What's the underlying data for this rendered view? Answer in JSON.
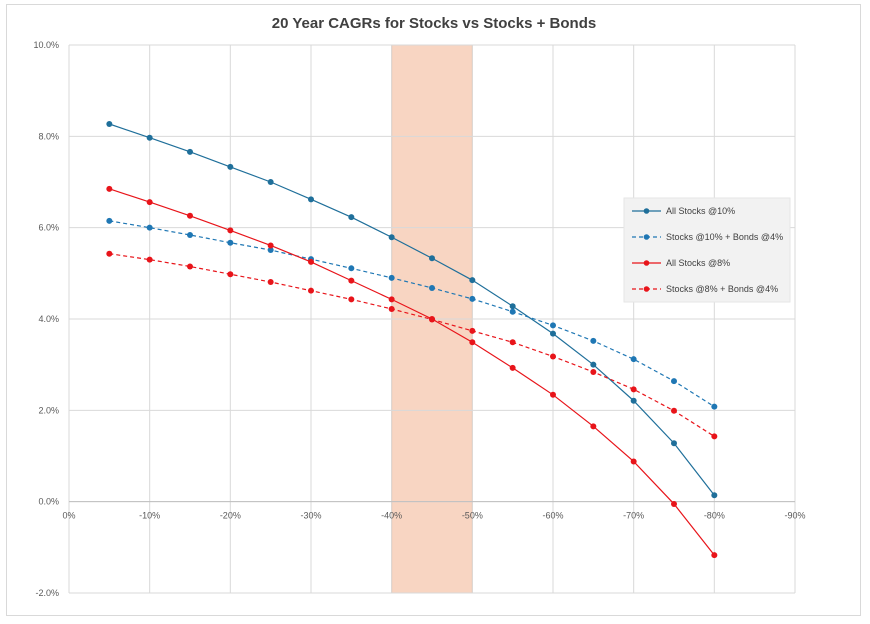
{
  "chart_data": {
    "type": "line",
    "title": "20 Year CAGRs for Stocks vs Stocks + Bonds",
    "xlabel": "",
    "ylabel": "",
    "xlim": [
      0,
      -90
    ],
    "ylim": [
      -2.0,
      10.0
    ],
    "x_ticks": [
      "0%",
      "-10%",
      "-20%",
      "-30%",
      "-40%",
      "-50%",
      "-60%",
      "-70%",
      "-80%",
      "-90%"
    ],
    "y_ticks": [
      "-2.0%",
      "0.0%",
      "2.0%",
      "4.0%",
      "6.0%",
      "8.0%",
      "10.0%"
    ],
    "grid": true,
    "legend_position": "right",
    "highlight_band": {
      "x_from": -40,
      "x_to": -50,
      "color": "#f8d5c2"
    },
    "x": [
      -5,
      -10,
      -15,
      -20,
      -25,
      -30,
      -35,
      -40,
      -45,
      -50,
      -55,
      -60,
      -65,
      -70,
      -75,
      -80
    ],
    "series": [
      {
        "name": "All Stocks @10%",
        "color": "#1f6f9a",
        "dashed": false,
        "values": [
          8.27,
          7.97,
          7.66,
          7.33,
          7.0,
          6.62,
          6.23,
          5.79,
          5.33,
          4.85,
          4.28,
          3.68,
          3.0,
          2.21,
          1.28,
          0.14
        ]
      },
      {
        "name": "Stocks @10% + Bonds @4%",
        "color": "#1f77b4",
        "dashed": true,
        "values": [
          6.15,
          6.0,
          5.84,
          5.67,
          5.51,
          5.31,
          5.11,
          4.9,
          4.68,
          4.44,
          4.16,
          3.86,
          3.52,
          3.12,
          2.64,
          2.08
        ]
      },
      {
        "name": "All Stocks @8%",
        "color": "#e8141a",
        "dashed": false,
        "values": [
          6.85,
          6.56,
          6.26,
          5.94,
          5.61,
          5.25,
          4.84,
          4.43,
          4.0,
          3.49,
          2.93,
          2.34,
          1.65,
          0.88,
          -0.05,
          -1.17
        ]
      },
      {
        "name": "Stocks @8% + Bonds @4%",
        "color": "#e8141a",
        "dashed": true,
        "values": [
          5.43,
          5.3,
          5.15,
          4.98,
          4.81,
          4.62,
          4.43,
          4.22,
          3.99,
          3.74,
          3.49,
          3.18,
          2.84,
          2.46,
          1.99,
          1.43
        ]
      }
    ]
  }
}
